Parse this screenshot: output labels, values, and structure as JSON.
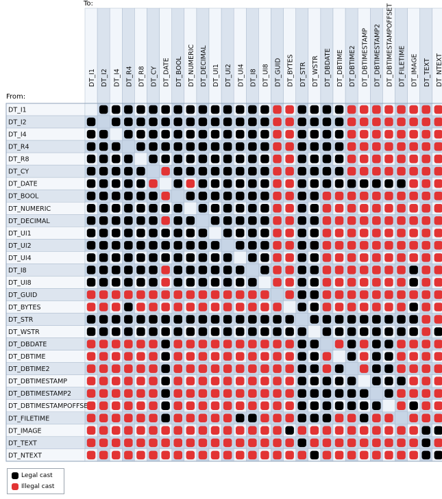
{
  "axis": {
    "to_label": "To:",
    "from_label": "From:"
  },
  "legend": {
    "legal_label": "Legal cast",
    "illegal_label": "Illegal cast"
  },
  "colors": {
    "legal": "#000000",
    "illegal": "#e23434",
    "header_light": "#f2f6fb",
    "header_dark": "#dae3ee",
    "row_light": "#f4f7fb",
    "row_dark": "#dde5ef",
    "cell_light": "#eef3f9",
    "cell_dark": "#c7d5e6",
    "grid": "#a9b9cc"
  },
  "types": [
    "DT_I1",
    "DT_I2",
    "DT_I4",
    "DT_R4",
    "DT_R8",
    "DT_CY",
    "DT_DATE",
    "DT_BOOL",
    "DT_NUMERIC",
    "DT_DECIMAL",
    "DT_UI1",
    "DT_UI2",
    "DT_UI4",
    "DT_I8",
    "DT_UI8",
    "DT_GUID",
    "DT_BYTES",
    "DT_STR",
    "DT_WSTR",
    "DT_DBDATE",
    "DT_DBTIME",
    "DT_DBTIME2",
    "DT_DBTIMESTAMP",
    "DT_DBTIMESTAMP2",
    "DT_DBTIMESTAMPOFFSET",
    "DT_FILETIME",
    "DT_IMAGE",
    "DT_TEXT",
    "DT_NTEXT"
  ],
  "cast_matrix": [
    ".LLLLLLLLLLLLLLRRLLLLRRRRRRRR",
    "L.LLLLLLLLLLLLLRRLLLLRRRRRRRR",
    "LL.LLLLLLLLLLLLRRLLLLRRRRRRRR",
    "LLL.LLLLLLLLLLLRRLLLLRRRRRRRR",
    "LLLL.LLLLLLLLLLRRLLLLRRRRRRRR",
    "LLLLL.RLLLLLLLLRRLLLLRRRRRRRR",
    "LLLLLR.LRLLLLLLRRLLLLLLLLLRRR",
    "LLLLLLR.LLLLLLLRRLLRRRRRRRRRR",
    "LLLLLLLL.LLLLLLRRLLRRRRRRRRRR",
    "LLLLLLRLL.LLLLLRRLLRRRRRRRRRR",
    "LLLLLLLLLL.LLLLRRLLRRRRRRRRRR",
    "LLLLLLLLLLL.LLLRRLLRRRRRRRRRR",
    "LLLLLLLLLLLL.LLRRLLRRRRRRRRRR",
    "LLLLLLRLLLLLL.LRRLLRRRRRRRLRR",
    "LLLLLLRLLLLLLL.RRLLRRRRRRRLRR",
    "RRRRRRRRRRRRRRR.RLLRRRRRRRRRR",
    "RRRLRRRRRRRRRRRR.LLRRRRRRRLRR",
    "LLLLLLLLLLLLLLLLL.LLLLLLLLLRR",
    "LLLLLLLLLLLLLLLLLL.LLLLLLLLRL",
    "RRRRRRLRRRRRRRRRRLL.RLRLLRRRR",
    "RRRRRRLRRRRRRRRRRLLR.LRLLRRRR",
    "RRRRRRLRRRRRRRRRRLLRL.RLLRRRR",
    "RRRRRRLRRRRRRRRRRLLLLL.LLLRRR",
    "RRRRRRLRRRRRRRRRRLLLLLL.LRRRR",
    "RRRRRRLRRRRRRRRRRLLLLLLL.RLRR",
    "RRRRRRLRRRRRLLRRRLLLRRLRR.RRR",
    "RRRRRRRRRRRRRRRRLRRRRRRRRRRLL",
    "RRRRRRRRRRRRRRRRRLRRRRRRRRRLR",
    "RRRRRRRRRRRRRRRRRRLRRRRRRRRLL"
  ]
}
